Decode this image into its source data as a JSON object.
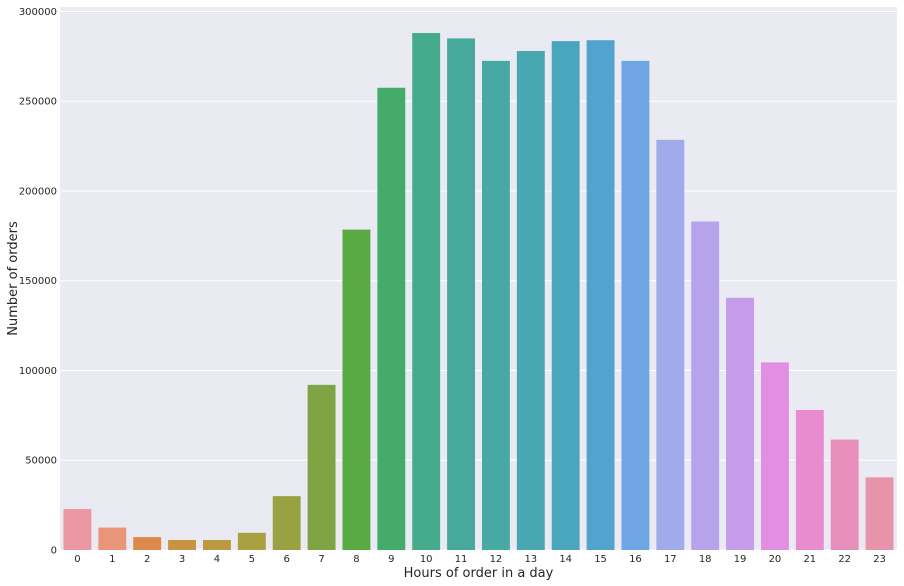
{
  "chart_data": {
    "type": "bar",
    "title": "",
    "xlabel": "Hours of order in a day",
    "ylabel": "Number of orders",
    "categories": [
      "0",
      "1",
      "2",
      "3",
      "4",
      "5",
      "6",
      "7",
      "8",
      "9",
      "10",
      "11",
      "12",
      "13",
      "14",
      "15",
      "16",
      "17",
      "18",
      "19",
      "20",
      "21",
      "22",
      "23"
    ],
    "values": [
      22800,
      12500,
      7200,
      5600,
      5600,
      9600,
      30000,
      92000,
      178500,
      257500,
      288000,
      285000,
      272500,
      278000,
      283500,
      284000,
      272500,
      228500,
      183000,
      140500,
      104500,
      78000,
      61500,
      40500
    ],
    "ylim": [
      0,
      302500
    ],
    "yticks": [
      "0",
      "50000",
      "100000",
      "150000",
      "200000",
      "250000",
      "300000"
    ],
    "ytick_values": [
      0,
      50000,
      100000,
      150000,
      200000,
      250000,
      300000
    ],
    "grid": true,
    "style": {
      "plot_background": "#EAEAF2",
      "grid_color": "#FFFFFF",
      "bar_colors": [
        "#EA96A3",
        "#E9957A",
        "#DC8A4C",
        "#C89343",
        "#B99A42",
        "#A9A042",
        "#98A243",
        "#7FA444",
        "#5AAA44",
        "#44AB6B",
        "#45AB8C",
        "#47A99C",
        "#48A8A6",
        "#49A7B1",
        "#4AA6BC",
        "#52A3CD",
        "#6DA6E2",
        "#A1AAEA",
        "#B6A3EB",
        "#C69BEA",
        "#E28EE2",
        "#E78CCF",
        "#E88EBB",
        "#E794AB"
      ]
    }
  }
}
